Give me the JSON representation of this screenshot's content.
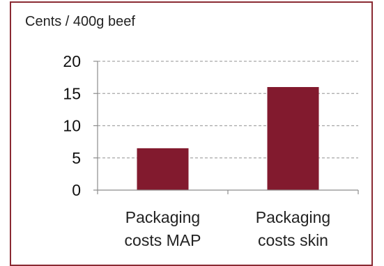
{
  "chart_data": {
    "type": "bar",
    "title": "",
    "ylabel": "Cents / 400g beef",
    "xlabel": "",
    "categories": [
      [
        "Packaging",
        "costs MAP"
      ],
      [
        "Packaging",
        "costs skin"
      ]
    ],
    "values": [
      6.5,
      16
    ],
    "ylim": [
      0,
      20
    ],
    "yticks": [
      "0",
      "5",
      "10",
      "15",
      "20"
    ],
    "ytick_values": [
      0,
      5,
      10,
      15,
      20
    ],
    "grid": "horizontal-dashed",
    "bar_color": "#821a2e",
    "frame_color": "#8a2a33",
    "gridline_color": "#a6a6a6"
  }
}
